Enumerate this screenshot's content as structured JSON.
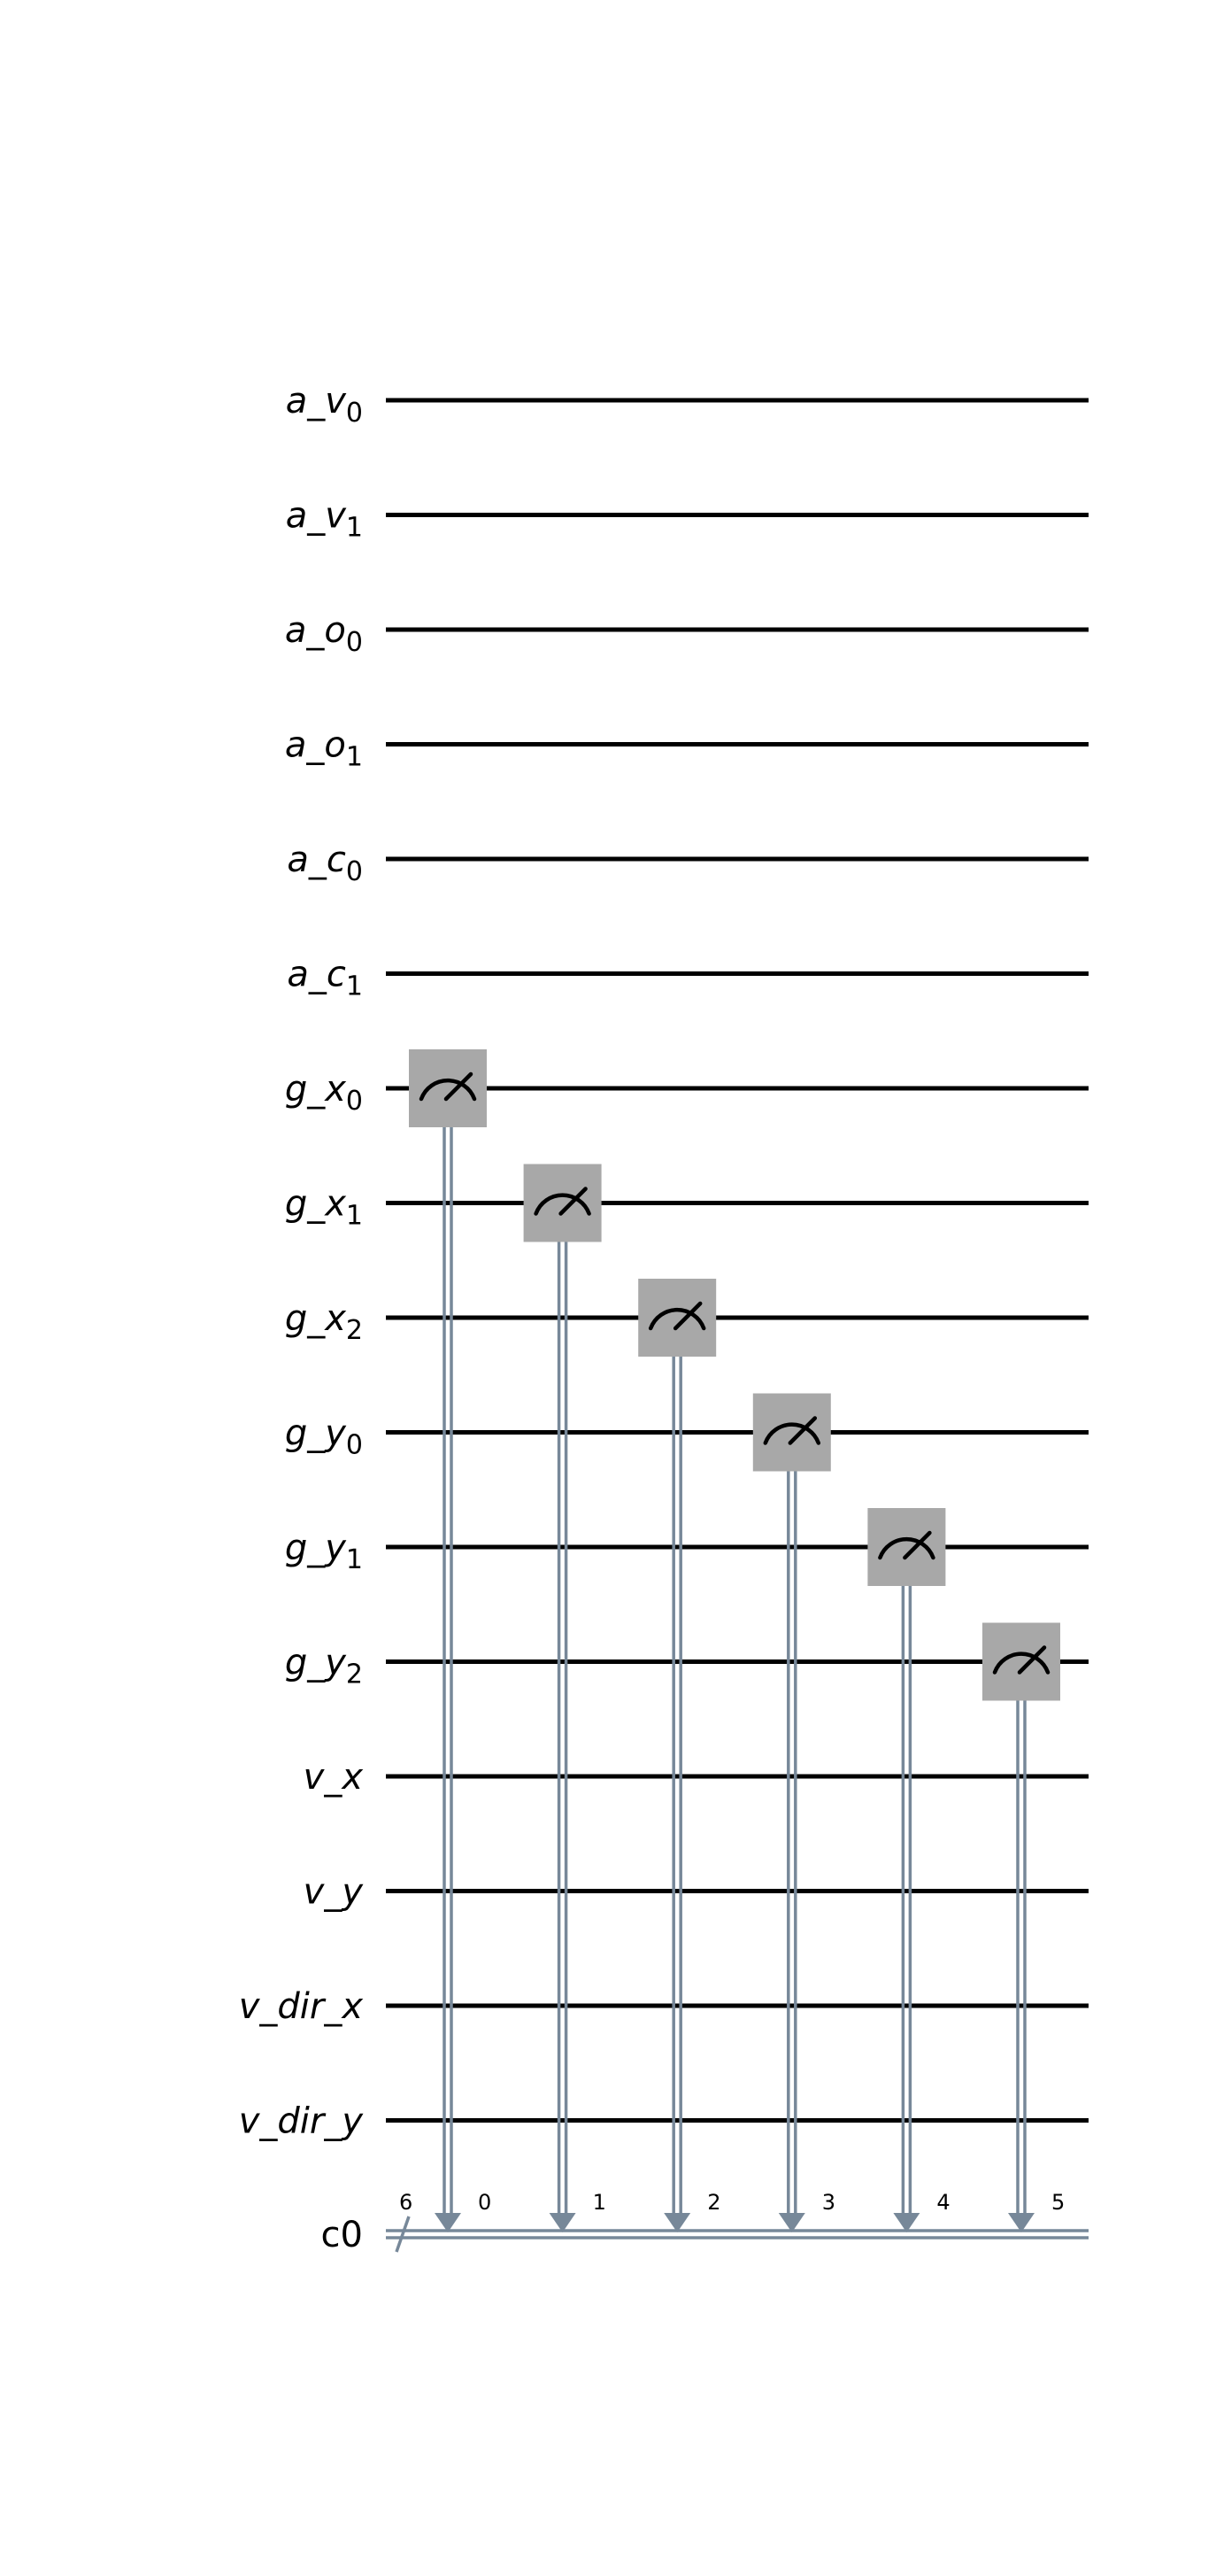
{
  "qubits": [
    {
      "base": "a_v",
      "sub": "0"
    },
    {
      "base": "a_v",
      "sub": "1"
    },
    {
      "base": "a_o",
      "sub": "0"
    },
    {
      "base": "a_o",
      "sub": "1"
    },
    {
      "base": "a_c",
      "sub": "0"
    },
    {
      "base": "a_c",
      "sub": "1"
    },
    {
      "base": "g_x",
      "sub": "0"
    },
    {
      "base": "g_x",
      "sub": "1"
    },
    {
      "base": "g_x",
      "sub": "2"
    },
    {
      "base": "g_y",
      "sub": "0"
    },
    {
      "base": "g_y",
      "sub": "1"
    },
    {
      "base": "g_y",
      "sub": "2"
    },
    {
      "base": "v_x",
      "sub": ""
    },
    {
      "base": "v_y",
      "sub": ""
    },
    {
      "base": "v_dir_x",
      "sub": ""
    },
    {
      "base": "v_dir_y",
      "sub": ""
    }
  ],
  "classical_register": {
    "name": "c0",
    "size": "6"
  },
  "measurements": [
    {
      "qubit": 6,
      "bit": "0"
    },
    {
      "qubit": 7,
      "bit": "1"
    },
    {
      "qubit": 8,
      "bit": "2"
    },
    {
      "qubit": 9,
      "bit": "3"
    },
    {
      "qubit": 10,
      "bit": "4"
    },
    {
      "qubit": 11,
      "bit": "5"
    }
  ],
  "colors": {
    "wire": "#000000",
    "classical": "#778899",
    "gate_fill": "#a8a8a8",
    "gate_symbol": "#000000"
  }
}
